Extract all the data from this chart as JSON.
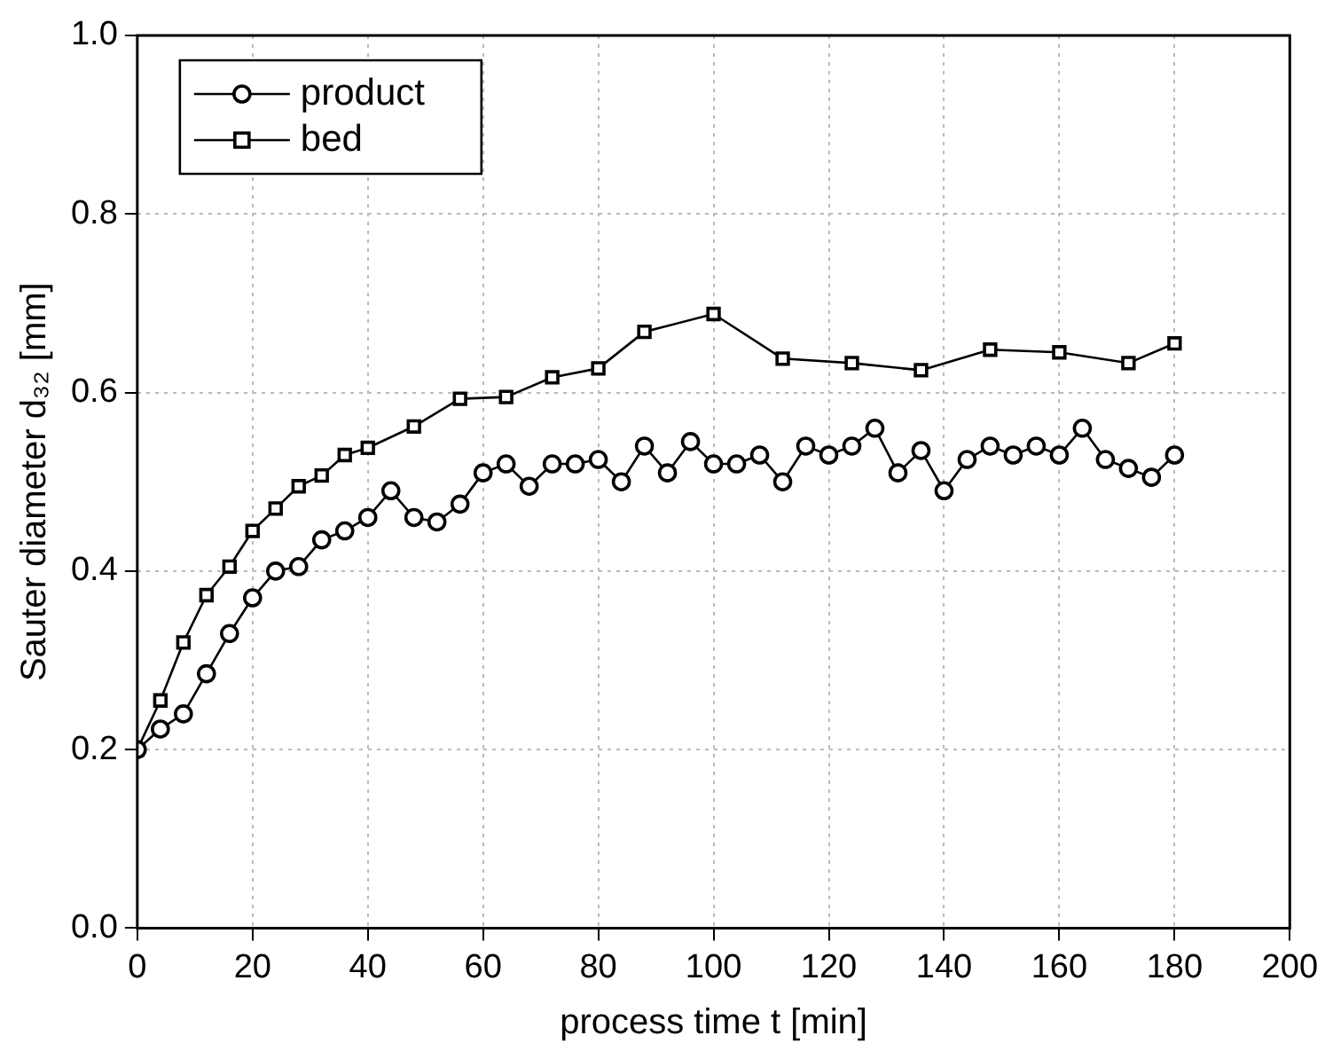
{
  "chart_data": {
    "type": "line",
    "xlabel": "process time t [min]",
    "ylabel": "Sauter diameter d₃₂ [mm]",
    "xlim": [
      0,
      200
    ],
    "xticks": [
      0,
      20,
      40,
      60,
      80,
      100,
      120,
      140,
      160,
      180,
      200
    ],
    "ylim": [
      0,
      1
    ],
    "yticks": [
      {
        "value": 0,
        "label": "0.0"
      },
      0.2,
      0.4,
      0.6,
      0.8,
      {
        "value": 1,
        "label": "1.0"
      }
    ],
    "grid": true,
    "legend": "top left",
    "line_style": "solid",
    "series": [
      {
        "name": "product",
        "color": "#000000",
        "marker": "circle",
        "x": [
          0,
          4,
          8,
          12,
          16,
          20,
          24,
          28,
          32,
          36,
          40,
          44,
          48,
          52,
          56,
          60,
          64,
          68,
          72,
          76,
          80,
          84,
          88,
          92,
          96,
          100,
          104,
          108,
          112,
          116,
          120,
          124,
          128,
          132,
          136,
          140,
          144,
          148,
          152,
          156,
          160,
          164,
          168,
          172,
          176,
          180
        ],
        "values": [
          0.2,
          0.223,
          0.24,
          0.285,
          0.33,
          0.37,
          0.4,
          0.405,
          0.435,
          0.445,
          0.46,
          0.49,
          0.46,
          0.455,
          0.475,
          0.51,
          0.52,
          0.495,
          0.52,
          0.52,
          0.525,
          0.5,
          0.54,
          0.51,
          0.545,
          0.52,
          0.52,
          0.53,
          0.5,
          0.54,
          0.53,
          0.54,
          0.56,
          0.51,
          0.535,
          0.49,
          0.525,
          0.54,
          0.53,
          0.54,
          0.53,
          0.56,
          0.525,
          0.515,
          0.505,
          0.53
        ]
      },
      {
        "name": "bed",
        "color": "#000000",
        "marker": "square",
        "x": [
          0,
          4,
          8,
          12,
          16,
          20,
          24,
          28,
          32,
          36,
          40,
          48,
          56,
          64,
          72,
          80,
          88,
          100,
          112,
          124,
          136,
          148,
          160,
          172,
          180
        ],
        "values": [
          0.2,
          0.255,
          0.32,
          0.373,
          0.405,
          0.445,
          0.47,
          0.495,
          0.507,
          0.53,
          0.538,
          0.562,
          0.593,
          0.595,
          0.617,
          0.627,
          0.668,
          0.688,
          0.638,
          0.633,
          0.625,
          0.648,
          0.645,
          0.633,
          0.655
        ]
      }
    ]
  }
}
